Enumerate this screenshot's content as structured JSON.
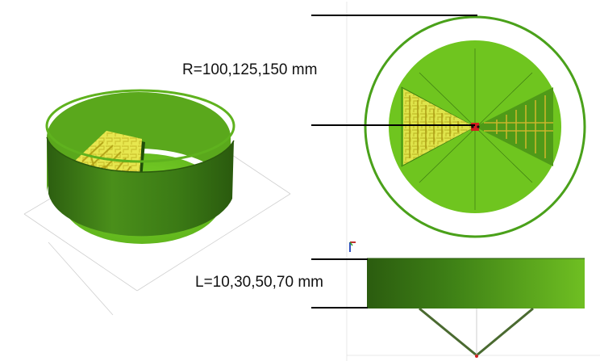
{
  "labels": {
    "radius": "R=100,125,150 mm",
    "length": "L=10,30,50,70 mm"
  },
  "colors": {
    "ground_plane": "#6fc51f",
    "cylinder_wall": "#2f6f12",
    "cylinder_inner": "#5fae1c",
    "antenna_substrate": "#e8e84a",
    "antenna_trace": "#d7c62c",
    "feed_point": "#d02020",
    "dimension_line": "#000000",
    "construction_line": "#c8c8c8"
  },
  "icons": {
    "axis_marker": "axis-triad-icon"
  }
}
